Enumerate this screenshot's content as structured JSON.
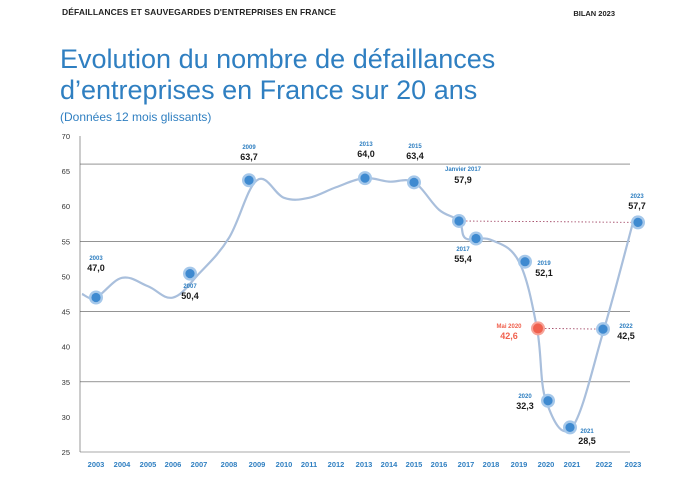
{
  "header": {
    "left": "DÉFAILLANCES ET SAUVEGARDES D'ENTREPRISES EN FRANCE",
    "right": "BILAN 2023"
  },
  "title_line1": "Evolution du nombre de défaillances",
  "title_line2": "d’entreprises en France sur 20 ans",
  "subtitle": "(Données 12 mois glissants)",
  "colors": {
    "title": "#2f7fc1",
    "line": "#a9bfdc",
    "marker": "#3f8ad0",
    "marker_ring": "#a6c8ea",
    "highlight": "#f0614e",
    "dotted": "#9b3a5a",
    "year_label": "#2f7fc1",
    "value_label": "#1a1a1a"
  },
  "chart_data": {
    "type": "line",
    "title": "Evolution du nombre de défaillances d’entreprises en France sur 20 ans",
    "subtitle": "(Données 12 mois glissants)",
    "x_ticks": [
      "2003",
      "2004",
      "2005",
      "2006",
      "2007",
      "2008",
      "2009",
      "2010",
      "2011",
      "2012",
      "2013",
      "2014",
      "2015",
      "2016",
      "2017",
      "2018",
      "2019",
      "2020",
      "2021",
      "2022",
      "2023"
    ],
    "y_ticks": [
      "25",
      "30",
      "35",
      "40",
      "45",
      "50",
      "55",
      "60",
      "65",
      "70"
    ],
    "ylim": [
      25,
      70
    ],
    "gridlines_at": [
      35,
      45,
      55,
      66
    ],
    "curve": [
      {
        "x": "2002.5",
        "y": 47.5
      },
      {
        "x": "2003",
        "y": 47.0
      },
      {
        "x": "2004",
        "y": 49.8
      },
      {
        "x": "2005",
        "y": 48.6
      },
      {
        "x": "2006",
        "y": 47.0
      },
      {
        "x": "2007",
        "y": 50.4
      },
      {
        "x": "2008",
        "y": 55.5
      },
      {
        "x": "2009",
        "y": 63.7
      },
      {
        "x": "2010",
        "y": 61.2
      },
      {
        "x": "2011",
        "y": 61.2
      },
      {
        "x": "2012",
        "y": 62.7
      },
      {
        "x": "2013",
        "y": 64.0
      },
      {
        "x": "2014",
        "y": 63.5
      },
      {
        "x": "2015",
        "y": 63.4
      },
      {
        "x": "2016",
        "y": 59.5
      },
      {
        "x": "2017-01",
        "y": 57.9
      },
      {
        "x": "2017",
        "y": 55.4
      },
      {
        "x": "2018",
        "y": 55.2
      },
      {
        "x": "2019",
        "y": 52.1
      },
      {
        "x": "2020-05",
        "y": 42.6
      },
      {
        "x": "2020",
        "y": 32.3
      },
      {
        "x": "2021",
        "y": 28.5
      },
      {
        "x": "2022",
        "y": 42.5
      },
      {
        "x": "2023",
        "y": 57.7
      }
    ],
    "markers": [
      {
        "label": "2003",
        "value": "47,0",
        "v": 47.0
      },
      {
        "label": "2007",
        "value": "50,4",
        "v": 50.4
      },
      {
        "label": "2009",
        "value": "63,7",
        "v": 63.7
      },
      {
        "label": "2013",
        "value": "64,0",
        "v": 64.0
      },
      {
        "label": "2015",
        "value": "63,4",
        "v": 63.4
      },
      {
        "label": "Janvier 2017",
        "value": "57,9",
        "v": 57.9
      },
      {
        "label": "2017",
        "value": "55,4",
        "v": 55.4
      },
      {
        "label": "2019",
        "value": "52,1",
        "v": 52.1
      },
      {
        "label": "Mai 2020",
        "value": "42,6",
        "v": 42.6,
        "highlight": true
      },
      {
        "label": "2020",
        "value": "32,3",
        "v": 32.3
      },
      {
        "label": "2021",
        "value": "28,5",
        "v": 28.5
      },
      {
        "label": "2022",
        "value": "42,5",
        "v": 42.5
      },
      {
        "label": "2023",
        "value": "57,7",
        "v": 57.7
      }
    ],
    "reference_lines": [
      {
        "from": "Janvier 2017",
        "to": "2023",
        "style": "dotted"
      },
      {
        "from": "Mai 2020",
        "to": "2022",
        "style": "dotted"
      }
    ]
  }
}
